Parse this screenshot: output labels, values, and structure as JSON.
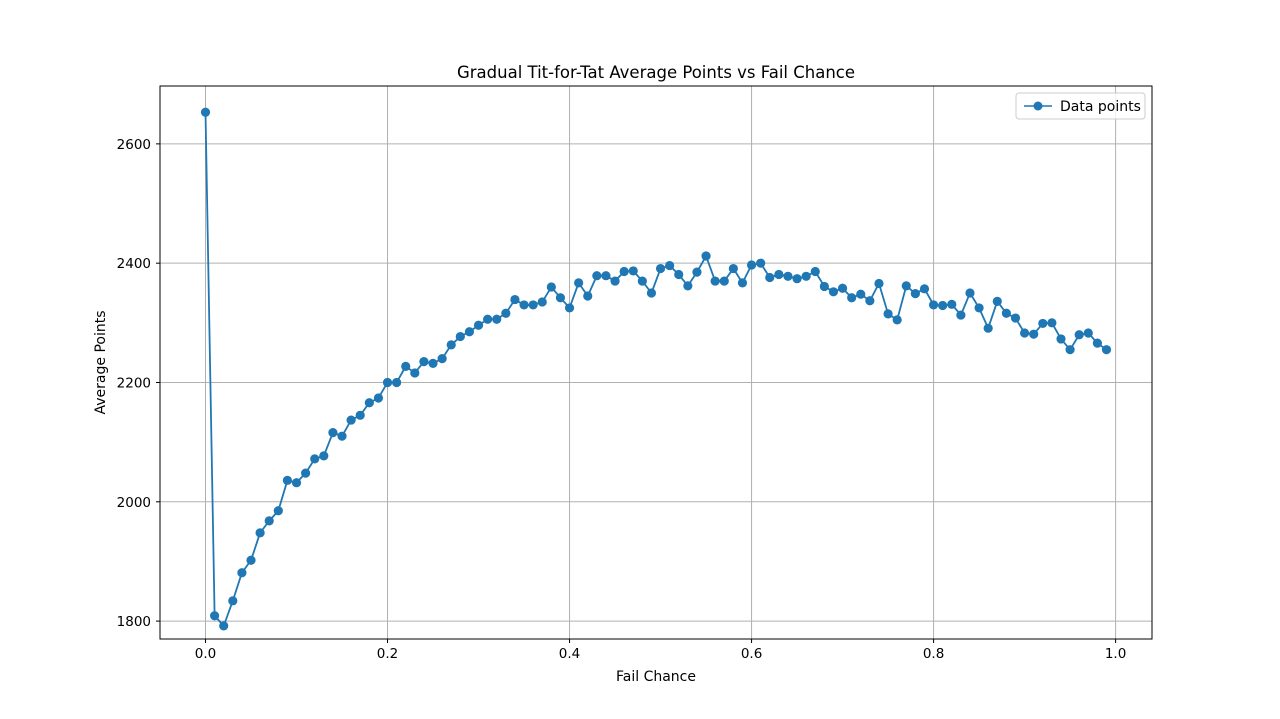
{
  "chart_data": {
    "type": "line",
    "title": "Gradual Tit-for-Tat Average Points vs Fail Chance",
    "xlabel": "Fail Chance",
    "ylabel": "Average Points",
    "xlim": [
      -0.05,
      1.04
    ],
    "ylim": [
      1770,
      2697
    ],
    "xticks": [
      0.0,
      0.2,
      0.4,
      0.6,
      0.8,
      1.0
    ],
    "xtick_labels": [
      "0.0",
      "0.2",
      "0.4",
      "0.6",
      "0.8",
      "1.0"
    ],
    "yticks": [
      1800,
      2000,
      2200,
      2400,
      2600
    ],
    "ytick_labels": [
      "1800",
      "2000",
      "2200",
      "2400",
      "2600"
    ],
    "grid": true,
    "legend_position": "top-right",
    "marker": "circle",
    "colors": {
      "series": "#1f77b4",
      "grid": "#b0b0b0",
      "axes": "#000000"
    },
    "series": [
      {
        "name": "Data points",
        "x": [
          0.0,
          0.01,
          0.02,
          0.03,
          0.04,
          0.05,
          0.06,
          0.07,
          0.08,
          0.09,
          0.1,
          0.11,
          0.12,
          0.13,
          0.14,
          0.15,
          0.16,
          0.17,
          0.18,
          0.19,
          0.2,
          0.21,
          0.22,
          0.23,
          0.24,
          0.25,
          0.26,
          0.27,
          0.28,
          0.29,
          0.3,
          0.31,
          0.32,
          0.33,
          0.34,
          0.35,
          0.36,
          0.37,
          0.38,
          0.39,
          0.4,
          0.41,
          0.42,
          0.43,
          0.44,
          0.45,
          0.46,
          0.47,
          0.48,
          0.49,
          0.5,
          0.51,
          0.52,
          0.53,
          0.54,
          0.55,
          0.56,
          0.57,
          0.58,
          0.59,
          0.6,
          0.61,
          0.62,
          0.63,
          0.64,
          0.65,
          0.66,
          0.67,
          0.68,
          0.69,
          0.7,
          0.71,
          0.72,
          0.73,
          0.74,
          0.75,
          0.76,
          0.77,
          0.78,
          0.79,
          0.8,
          0.81,
          0.82,
          0.83,
          0.84,
          0.85,
          0.86,
          0.87,
          0.88,
          0.89,
          0.9,
          0.91,
          0.92,
          0.93,
          0.94,
          0.95,
          0.96,
          0.97,
          0.98,
          0.99
        ],
        "y": [
          2653,
          1809,
          1792,
          1834,
          1881,
          1902,
          1948,
          1968,
          1985,
          2036,
          2032,
          2048,
          2072,
          2077,
          2116,
          2110,
          2137,
          2145,
          2166,
          2174,
          2200,
          2200,
          2227,
          2216,
          2235,
          2232,
          2240,
          2263,
          2277,
          2285,
          2296,
          2306,
          2306,
          2316,
          2339,
          2330,
          2330,
          2335,
          2360,
          2342,
          2325,
          2367,
          2345,
          2379,
          2379,
          2370,
          2386,
          2387,
          2370,
          2350,
          2391,
          2396,
          2381,
          2362,
          2385,
          2412,
          2370,
          2370,
          2391,
          2367,
          2397,
          2400,
          2376,
          2381,
          2378,
          2374,
          2378,
          2386,
          2361,
          2352,
          2358,
          2342,
          2348,
          2337,
          2366,
          2315,
          2305,
          2362,
          2349,
          2357,
          2330,
          2329,
          2331,
          2313,
          2350,
          2325,
          2291,
          2336,
          2316,
          2308,
          2283,
          2281,
          2299,
          2300,
          2273,
          2255,
          2280,
          2283,
          2266,
          2255
        ]
      }
    ]
  }
}
